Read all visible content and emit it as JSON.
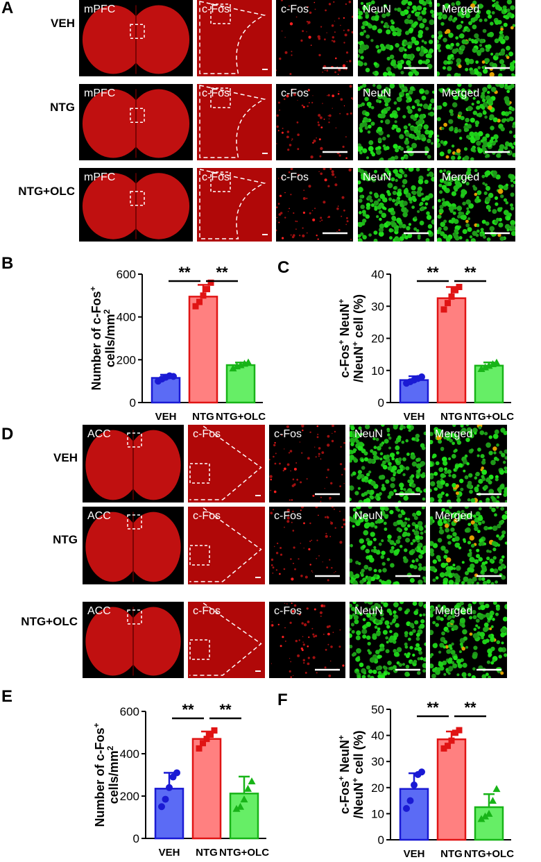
{
  "figure_a": {
    "panel_letter": "A",
    "row_labels": [
      "VEH",
      "NTG",
      "NTG+OLC"
    ],
    "column_labels": [
      "mPFC",
      "c-Fos",
      "c-Fos",
      "NeuN",
      "Merged"
    ]
  },
  "figure_d": {
    "panel_letter": "D",
    "row_labels": [
      "VEH",
      "NTG",
      "NTG+OLC"
    ],
    "column_labels": [
      "ACC",
      "c-Fos",
      "c-Fos",
      "NeuN",
      "Merged"
    ]
  },
  "colors": {
    "red_channel": "#d41010",
    "green_channel": "#22c41f",
    "veh_fill": "#5b6bf5",
    "veh_edge": "#1a1ad4",
    "ntg_fill": "#ff8080",
    "ntg_edge": "#e01414",
    "olc_fill": "#66ee66",
    "olc_edge": "#18b418"
  },
  "chart_data": [
    {
      "panel": "B",
      "type": "bar",
      "ylabel_line1": "Number of c-Fos",
      "ylabel_sup": "+",
      "ylabel_line2": "cells/mm",
      "ylabel_sup2": "2",
      "categories": [
        "VEH",
        "NTG",
        "NTG+OLC"
      ],
      "values": [
        115,
        495,
        175
      ],
      "errors": [
        15,
        55,
        12
      ],
      "points": [
        [
          100,
          110,
          118,
          125,
          122
        ],
        [
          450,
          470,
          500,
          530,
          560
        ],
        [
          160,
          170,
          175,
          182,
          188
        ]
      ],
      "ylim": [
        0,
        600
      ],
      "yticks": [
        0,
        200,
        400,
        600
      ],
      "significance": [
        {
          "from": 0,
          "to": 1,
          "label": "**"
        },
        {
          "from": 1,
          "to": 2,
          "label": "**"
        }
      ]
    },
    {
      "panel": "C",
      "type": "bar",
      "ylabel_line1": "c-Fos",
      "ylabel_sup": "+",
      "ylabel_mid": " NeuN",
      "ylabel_sup_mid": "+",
      "ylabel_line2": "/NeuN",
      "ylabel_sup2": "+",
      "ylabel_line2_tail": " cell (%)",
      "categories": [
        "VEH",
        "NTG",
        "NTG+OLC"
      ],
      "values": [
        7,
        32.5,
        11.5
      ],
      "errors": [
        1.2,
        3.5,
        1
      ],
      "points": [
        [
          6,
          6.5,
          7,
          7.5,
          8
        ],
        [
          29,
          31,
          33,
          35,
          36
        ],
        [
          10.5,
          11,
          11.5,
          12,
          12.5
        ]
      ],
      "ylim": [
        0,
        40
      ],
      "yticks": [
        0,
        10,
        20,
        30,
        40
      ],
      "significance": [
        {
          "from": 0,
          "to": 1,
          "label": "**"
        },
        {
          "from": 1,
          "to": 2,
          "label": "**"
        }
      ]
    },
    {
      "panel": "E",
      "type": "bar",
      "ylabel_line1": "Number of c-Fos",
      "ylabel_sup": "+",
      "ylabel_line2": "cells/mm",
      "ylabel_sup2": "2",
      "categories": [
        "VEH",
        "NTG",
        "NTG+OLC"
      ],
      "values": [
        235,
        470,
        212
      ],
      "errors": [
        75,
        35,
        80
      ],
      "points": [
        [
          150,
          185,
          240,
          290,
          310
        ],
        [
          425,
          450,
          470,
          490,
          510
        ],
        [
          140,
          150,
          185,
          235,
          270
        ]
      ],
      "ylim": [
        0,
        600
      ],
      "yticks": [
        0,
        200,
        400,
        600
      ],
      "significance": [
        {
          "from": 0,
          "to": 1,
          "label": "**"
        },
        {
          "from": 1,
          "to": 2,
          "label": "**"
        }
      ]
    },
    {
      "panel": "F",
      "type": "bar",
      "ylabel_line1": "c-Fos",
      "ylabel_sup": "+",
      "ylabel_mid": " NeuN",
      "ylabel_sup_mid": "+",
      "ylabel_line2": "/NeuN",
      "ylabel_sup2": "+",
      "ylabel_line2_tail": " cell (%)",
      "categories": [
        "VEH",
        "NTG",
        "NTG+OLC"
      ],
      "values": [
        19.5,
        38.5,
        12.5
      ],
      "errors": [
        6,
        3,
        5
      ],
      "points": [
        [
          12,
          15,
          21,
          25,
          26
        ],
        [
          35,
          36,
          38,
          41,
          42
        ],
        [
          8,
          9,
          10,
          15,
          19.5
        ]
      ],
      "ylim": [
        0,
        50
      ],
      "yticks": [
        0,
        10,
        20,
        30,
        40,
        50
      ],
      "significance": [
        {
          "from": 0,
          "to": 1,
          "label": "**"
        },
        {
          "from": 1,
          "to": 2,
          "label": "**"
        }
      ]
    }
  ]
}
